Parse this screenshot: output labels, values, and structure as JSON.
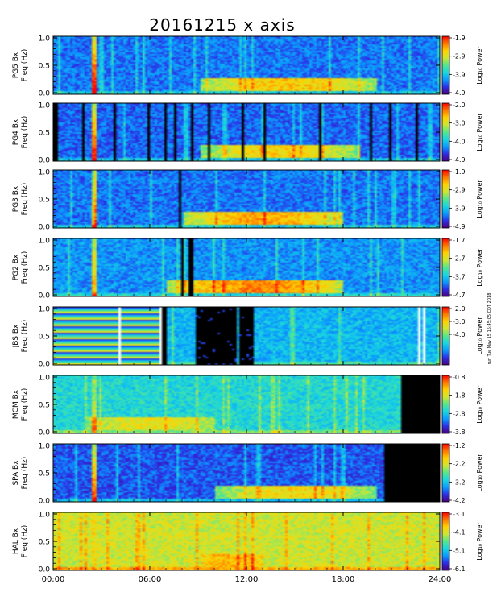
{
  "chart_data": {
    "type": "heatmap",
    "title": "20161215 x axis",
    "x_ticks": [
      "00:00",
      "06:00",
      "12:00",
      "18:00",
      "24:00"
    ],
    "x_range_hours": [
      0,
      24
    ],
    "y_ticks": [
      "0.0",
      "0.5",
      "1.0"
    ],
    "ylim": [
      0,
      1.0
    ],
    "colorbar_label": "Log₁₀ Power",
    "colormap": [
      "#4a007a",
      "#2c2ee6",
      "#0a9bff",
      "#19d6e0",
      "#55e68c",
      "#cde632",
      "#ffd200",
      "#ff7800",
      "#ff0000"
    ],
    "vertical_note": "run Tue May 15 15:45:05 CDT 2018",
    "panels": [
      {
        "station_label": "PG5 Bx",
        "freq_label": "Freq (Hz)",
        "cbar_ticks": [
          "-1.9",
          "-2.9",
          "-3.9",
          "-4.9"
        ],
        "base": 0.12,
        "band": 0.55,
        "bandStart": 9,
        "bandEnd": 20,
        "burst": 0.85,
        "gaps": []
      },
      {
        "station_label": "PG4 Bx",
        "freq_label": "Freq (Hz)",
        "cbar_ticks": [
          "-2.0",
          "-3.0",
          "-4.0",
          "-4.9"
        ],
        "base": 0.1,
        "band": 0.55,
        "bandStart": 9,
        "bandEnd": 19,
        "burst": 0.85,
        "gaps": [
          [
            0,
            0.25
          ],
          [
            1.75,
            1.85
          ],
          [
            3.7,
            3.8
          ],
          [
            5.75,
            5.85
          ],
          [
            6.8,
            6.9
          ],
          [
            7.45,
            7.55
          ],
          [
            8.5,
            8.6
          ],
          [
            9.6,
            9.7
          ],
          [
            11.6,
            11.7
          ],
          [
            13.0,
            13.1
          ],
          [
            16.4,
            16.55
          ],
          [
            19.6,
            19.7
          ],
          [
            20.8,
            20.9
          ],
          [
            22.5,
            22.6
          ]
        ]
      },
      {
        "station_label": "PG3 Bx",
        "freq_label": "Freq (Hz)",
        "cbar_ticks": [
          "-1.9",
          "-2.9",
          "-3.9",
          "-4.9"
        ],
        "base": 0.12,
        "band": 0.6,
        "bandStart": 8,
        "bandEnd": 18,
        "burst": 0.6,
        "gaps": [
          [
            7.75,
            7.9
          ]
        ]
      },
      {
        "station_label": "PG2 Bx",
        "freq_label": "Freq (Hz)",
        "cbar_ticks": [
          "-1.7",
          "-2.7",
          "-3.7",
          "-4.7"
        ],
        "base": 0.16,
        "band": 0.6,
        "bandStart": 7,
        "bandEnd": 18,
        "burst": 0.6,
        "gaps": [
          [
            7.9,
            8.0
          ],
          [
            8.35,
            8.55
          ]
        ]
      },
      {
        "station_label": "JBS Bx",
        "freq_label": "Freq (Hz)",
        "cbar_ticks": [
          "-2.0",
          "-3.0",
          "-4.0"
        ],
        "base": 0.22,
        "band": 0.0,
        "bandStart": 0,
        "bandEnd": 0,
        "burst": 0.0,
        "gaps": [
          [
            6.65,
            7.0
          ]
        ],
        "striped_until": 6.65,
        "dark": [
          [
            8.7,
            11.3
          ],
          [
            11.5,
            12.3
          ]
        ],
        "white_lines": [
          4.0,
          6.65,
          22.7,
          23.0
        ]
      },
      {
        "station_label": "MCM Bx",
        "freq_label": "Freq (Hz)",
        "cbar_ticks": [
          "-0.8",
          "-1.8",
          "-2.8",
          "-3.8"
        ],
        "base": 0.3,
        "band": 0.3,
        "bandStart": 2,
        "bandEnd": 10,
        "burst": 0.3,
        "gaps": [],
        "dark_after": 21.5
      },
      {
        "station_label": "SPA Bx",
        "freq_label": "Freq (Hz)",
        "cbar_ticks": [
          "-1.2",
          "-2.2",
          "-3.2",
          "-4.2"
        ],
        "base": 0.08,
        "band": 0.55,
        "bandStart": 10,
        "bandEnd": 20,
        "burst": 0.8,
        "gaps": [],
        "dark_after": 20.5
      },
      {
        "station_label": "HAL Bx",
        "freq_label": "Freq (Hz)",
        "cbar_ticks": [
          "-3.1",
          "-4.1",
          "-5.1",
          "-6.1"
        ],
        "base": 0.55,
        "band": 0.15,
        "bandStart": 9,
        "bandEnd": 13,
        "burst": 0.1,
        "gaps": []
      }
    ]
  }
}
